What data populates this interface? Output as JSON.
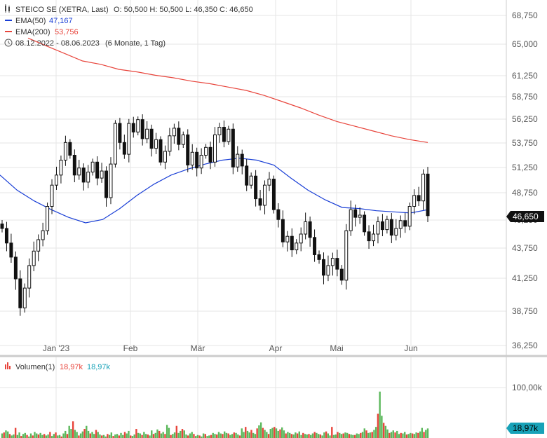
{
  "header": {
    "instrument": "STEICO SE (XETRA, Last)",
    "ohlc": "O: 50,500  H: 50,500  L: 46,350  C: 46,650",
    "ema50_label": "EMA(50)",
    "ema50_value": "47,167",
    "ema200_label": "EMA(200)",
    "ema200_value": "53,756",
    "range": "08.12.2022 - 08.06.2023",
    "range_detail": "(6 Monate, 1 Tag)"
  },
  "colors": {
    "ema50": "#1a3fd6",
    "ema200": "#e8453c",
    "candle": "#111111",
    "vol_up": "#5cb85c",
    "vol_down": "#e8453c",
    "last_badge": "#111111",
    "vol_badge": "#17a2b8",
    "grid": "#e6e6e6"
  },
  "icons": {
    "ohlc": "candlestick-icon",
    "range": "clock-icon"
  },
  "last_price_label": "46,650",
  "volume": {
    "label": "Volumen(1)",
    "value_red": "18,97k",
    "value_teal": "18,97k",
    "axis_tick": "100,00k",
    "last_badge": "18,97k"
  },
  "chart_data": {
    "type": "candlestick",
    "x_labels": [
      "Jan '23",
      "Feb",
      "Mär",
      "Apr",
      "Mai",
      "Jun"
    ],
    "y_ticks": [
      "36,250",
      "38,750",
      "41,250",
      "43,750",
      "46,250",
      "48,750",
      "51,250",
      "53,750",
      "56,250",
      "58,750",
      "61,250",
      "65,000",
      "68,750"
    ],
    "ylim": [
      36.25,
      68.75
    ],
    "closes": [
      45.5,
      44.2,
      43.0,
      41.2,
      39.0,
      40.5,
      42.3,
      43.5,
      44.5,
      45.3,
      47.5,
      49.5,
      50.5,
      52.0,
      53.8,
      52.5,
      50.5,
      51.2,
      49.8,
      50.8,
      51.8,
      50.2,
      50.9,
      48.3,
      51.6,
      55.8,
      53.8,
      52.6,
      55.8,
      54.9,
      56.2,
      54.2,
      55.2,
      53.2,
      54.1,
      51.8,
      52.9,
      54.5,
      55.3,
      53.6,
      54.6,
      51.5,
      52.8,
      51.2,
      52.5,
      53.3,
      51.8,
      54.6,
      55.4,
      53.9,
      55.2,
      51.3,
      52.6,
      51.4,
      49.5,
      50.4,
      48.2,
      47.6,
      49.5,
      50.1,
      47.2,
      46.3,
      44.3,
      44.8,
      43.6,
      44.2,
      45.0,
      46.1,
      44.7,
      43.2,
      42.8,
      41.5,
      42.3,
      42.9,
      42.0,
      41.1,
      45.3,
      47.2,
      46.5,
      46.7,
      45.2,
      44.4,
      45.0,
      46.1,
      45.4,
      46.3,
      44.9,
      45.5,
      46.2,
      45.7,
      47.5,
      48.5,
      48.0,
      50.6,
      46.65
    ],
    "ema50": [
      50.5,
      49.0,
      48.0,
      47.2,
      46.5,
      46.0,
      46.3,
      47.3,
      48.5,
      49.6,
      50.5,
      51.1,
      51.6,
      52.0,
      52.2,
      52.0,
      51.5,
      50.2,
      49.0,
      48.1,
      47.4,
      47.3,
      47.1,
      47.0,
      46.9,
      47.2
    ],
    "ema200": [
      65.8,
      64.8,
      63.9,
      63.0,
      62.6,
      62.0,
      61.7,
      61.3,
      61.0,
      60.6,
      60.3,
      59.9,
      59.5,
      58.9,
      58.2,
      57.5,
      56.7,
      56.0,
      55.5,
      55.0,
      54.5,
      54.1,
      53.8
    ],
    "volume_unit": "k",
    "volume_ylim": [
      0,
      115
    ],
    "volumes": [
      9,
      11,
      15,
      13,
      8,
      5,
      7,
      20,
      6,
      11,
      4,
      8,
      10,
      6,
      3,
      9,
      5,
      12,
      9,
      7,
      10,
      6,
      8,
      5,
      7,
      12,
      4,
      8,
      11,
      5,
      6,
      3,
      9,
      14,
      8,
      24,
      18,
      33,
      16,
      12,
      5,
      9,
      13,
      18,
      24,
      14,
      9,
      12,
      8,
      16,
      12,
      7,
      5,
      6,
      3,
      8,
      6,
      11,
      4,
      7,
      8,
      5,
      10,
      6,
      12,
      9,
      14,
      5,
      4,
      7,
      18,
      10,
      9,
      6,
      12,
      8,
      7,
      5,
      15,
      8,
      10,
      17,
      14,
      9,
      12,
      8,
      26,
      20,
      6,
      8,
      11,
      24,
      10,
      14,
      18,
      15,
      7,
      5,
      9,
      12,
      8,
      4,
      6,
      5,
      3,
      9,
      8,
      4,
      5,
      6,
      10,
      8,
      7,
      12,
      9,
      8,
      13,
      10,
      9,
      6,
      8,
      11,
      10,
      7,
      5,
      19,
      12,
      22,
      14,
      11,
      16,
      10,
      8,
      19,
      25,
      31,
      20,
      16,
      12,
      8,
      18,
      20,
      22,
      19,
      14,
      17,
      21,
      15,
      9,
      12,
      10,
      8,
      7,
      11,
      9,
      13,
      6,
      10,
      8,
      7,
      8,
      6,
      9,
      12,
      10,
      8,
      7,
      5,
      11,
      13,
      9,
      5,
      22,
      6,
      7,
      12,
      10,
      8,
      9,
      11,
      10,
      8,
      7,
      6,
      6,
      9,
      8,
      10,
      12,
      19,
      15,
      10,
      11,
      12,
      16,
      22,
      48,
      92,
      44,
      30,
      24,
      17,
      10,
      12,
      15,
      11,
      14,
      8,
      10,
      9,
      12,
      7,
      8,
      10,
      9,
      8,
      11,
      10,
      13,
      20,
      12,
      16,
      18.97
    ]
  }
}
